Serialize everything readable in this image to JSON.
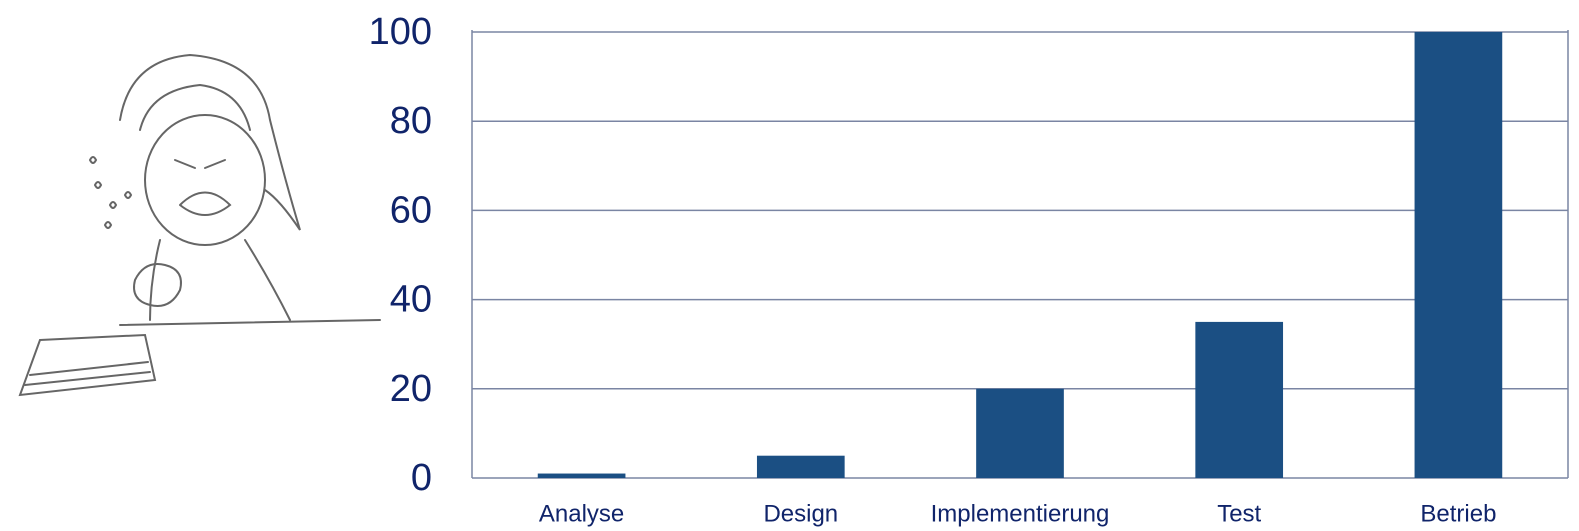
{
  "chart_data": {
    "type": "bar",
    "categories": [
      "Analyse",
      "Design",
      "Implementierung",
      "Test",
      "Betrieb"
    ],
    "values": [
      1,
      5,
      20,
      35,
      100
    ],
    "color": "#1b4f83",
    "ylim": [
      0,
      100
    ],
    "yticks": [
      0,
      20,
      40,
      60,
      80,
      100
    ],
    "grid": true
  }
}
